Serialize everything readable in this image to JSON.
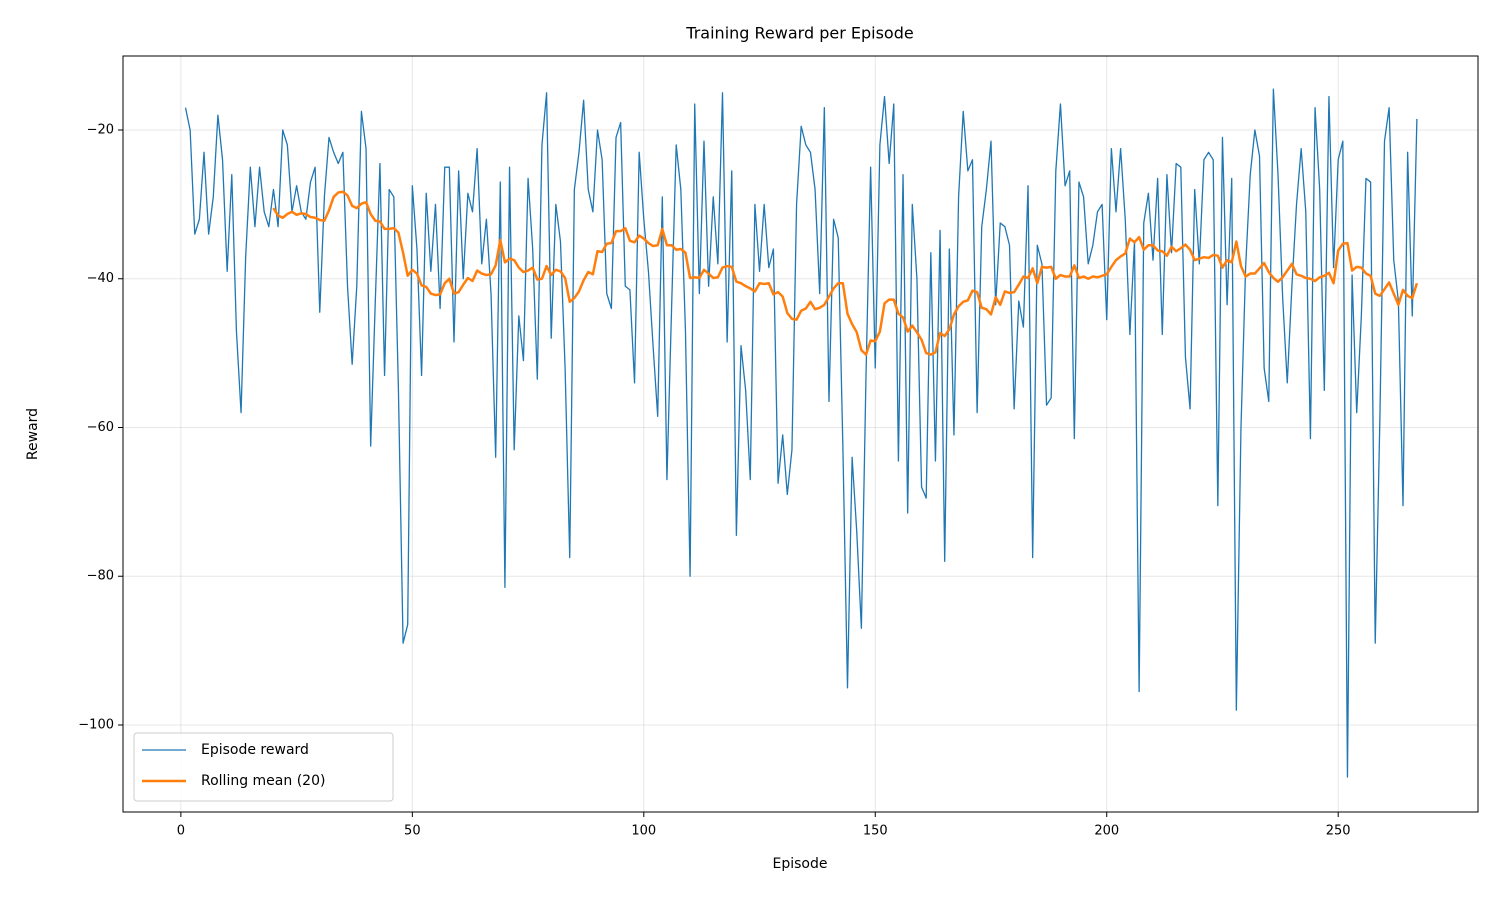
{
  "chart_data": {
    "type": "line",
    "title": "Training Reward per Episode",
    "x_label": "Episode",
    "y_label": "Reward",
    "x": [
      1,
      2,
      3,
      4,
      5,
      6,
      7,
      8,
      9,
      10,
      11,
      12,
      13,
      14,
      15,
      16,
      17,
      18,
      19,
      20,
      21,
      22,
      23,
      24,
      25,
      26,
      27,
      28,
      29,
      30,
      31,
      32,
      33,
      34,
      35,
      36,
      37,
      38,
      39,
      40,
      41,
      42,
      43,
      44,
      45,
      46,
      47,
      48,
      49,
      50,
      51,
      52,
      53,
      54,
      55,
      56,
      57,
      58,
      59,
      60,
      61,
      62,
      63,
      64,
      65,
      66,
      67,
      68,
      69,
      70,
      71,
      72,
      73,
      74,
      75,
      76,
      77,
      78,
      79,
      80,
      81,
      82,
      83,
      84,
      85,
      86,
      87,
      88,
      89,
      90,
      91,
      92,
      93,
      94,
      95,
      96,
      97,
      98,
      99,
      100,
      101,
      102,
      103,
      104,
      105,
      106,
      107,
      108,
      109,
      110,
      111,
      112,
      113,
      114,
      115,
      116,
      117,
      118,
      119,
      120,
      121,
      122,
      123,
      124,
      125,
      126,
      127,
      128,
      129,
      130,
      131,
      132,
      133,
      134,
      135,
      136,
      137,
      138,
      139,
      140,
      141,
      142,
      143,
      144,
      145,
      146,
      147,
      148,
      149,
      150,
      151,
      152,
      153,
      154,
      155,
      156,
      157,
      158,
      159,
      160,
      161,
      162,
      163,
      164,
      165,
      166,
      167,
      168,
      169,
      170,
      171,
      172,
      173,
      174,
      175,
      176,
      177,
      178,
      179,
      180,
      181,
      182,
      183,
      184,
      185,
      186,
      187,
      188,
      189,
      190,
      191,
      192,
      193,
      194,
      195,
      196,
      197,
      198,
      199,
      200,
      201,
      202,
      203,
      204,
      205,
      206,
      207,
      208,
      209,
      210,
      211,
      212,
      213,
      214,
      215,
      216,
      217,
      218,
      219,
      220,
      221,
      222,
      223,
      224,
      225,
      226,
      227,
      228,
      229,
      230,
      231,
      232,
      233,
      234,
      235,
      236,
      237,
      238,
      239,
      240,
      241,
      242,
      243,
      244,
      245,
      246,
      247,
      248,
      249,
      250,
      251,
      252,
      253,
      254,
      255,
      256,
      257,
      258,
      259,
      260,
      261,
      262,
      263,
      264,
      265,
      266,
      267
    ],
    "series": [
      {
        "name": "Episode reward",
        "color": "#1f77b4",
        "width": 1.3,
        "values": [
          -17,
          -20,
          -34,
          -32,
          -23,
          -34,
          -29,
          -18,
          -24,
          -39,
          -26,
          -47,
          -58,
          -37,
          -25,
          -33,
          -25,
          -31,
          -33,
          -28,
          -33,
          -20,
          -22,
          -31,
          -27.5,
          -31,
          -32,
          -27,
          -25,
          -44.5,
          -29,
          -21,
          -23,
          -24.5,
          -23,
          -41,
          -51.5,
          -41,
          -17.5,
          -22.5,
          -62.5,
          -43,
          -24.5,
          -53,
          -28,
          -29,
          -55,
          -89,
          -86.5,
          -27.5,
          -36,
          -53,
          -28.5,
          -39,
          -30,
          -44,
          -25,
          -25,
          -48.5,
          -25.5,
          -40,
          -28.5,
          -31,
          -22.5,
          -38,
          -32,
          -42,
          -64,
          -27,
          -81.5,
          -25,
          -63,
          -45,
          -51,
          -26.5,
          -36,
          -53.5,
          -22,
          -15,
          -48,
          -30,
          -35,
          -52,
          -77.5,
          -28,
          -23,
          -16,
          -28,
          -31,
          -20,
          -24,
          -42,
          -44,
          -21,
          -19,
          -41,
          -41.5,
          -54,
          -23,
          -32,
          -39,
          -49,
          -58.5,
          -29,
          -67,
          -44,
          -22,
          -28,
          -47,
          -80,
          -16.5,
          -42,
          -21.5,
          -41,
          -29,
          -38,
          -15,
          -48.5,
          -25.5,
          -74.5,
          -49,
          -55,
          -67,
          -30,
          -39,
          -30,
          -38.5,
          -36,
          -67.5,
          -61,
          -69,
          -63,
          -30,
          -19.5,
          -22,
          -23,
          -28,
          -42,
          -17,
          -56.5,
          -32,
          -34.5,
          -62.5,
          -95,
          -64,
          -74,
          -87,
          -53,
          -25,
          -52,
          -22,
          -15.5,
          -24.5,
          -16.5,
          -64.5,
          -26,
          -71.5,
          -30,
          -40,
          -68,
          -69.5,
          -36.5,
          -64.5,
          -33.5,
          -78,
          -36,
          -61,
          -29,
          -17.5,
          -25.5,
          -24,
          -58,
          -33,
          -28,
          -21.5,
          -43.5,
          -32.5,
          -33,
          -35.5,
          -57.5,
          -43,
          -46.5,
          -27.5,
          -77.5,
          -35.5,
          -38,
          -57,
          -56,
          -25.5,
          -16.5,
          -27.5,
          -25.5,
          -61.5,
          -27,
          -29,
          -38,
          -35.5,
          -31,
          -30,
          -45.5,
          -22.5,
          -31,
          -22.5,
          -32,
          -47.5,
          -35,
          -95.5,
          -32.5,
          -28.5,
          -37.5,
          -26.5,
          -47.5,
          -26,
          -36.5,
          -24.5,
          -25,
          -50.5,
          -57.5,
          -28,
          -38,
          -24,
          -23,
          -24,
          -70.5,
          -21,
          -43.5,
          -26.5,
          -98,
          -60,
          -38.5,
          -26,
          -20,
          -23.5,
          -52,
          -56.5,
          -14.5,
          -26,
          -42.5,
          -54,
          -41,
          -30,
          -22.5,
          -31,
          -61.5,
          -17,
          -28,
          -55,
          -15.5,
          -38.5,
          -24,
          -21.5,
          -107,
          -39.5,
          -58,
          -45,
          -26.5,
          -27,
          -89,
          -59,
          -21.5,
          -17,
          -37.5,
          -43,
          -70.5,
          -23,
          -45,
          -18.5
        ]
      },
      {
        "name": "Rolling mean (20)",
        "color": "#ff7f0e",
        "width": 2.5,
        "values": [
          null,
          null,
          null,
          null,
          null,
          null,
          null,
          null,
          null,
          null,
          null,
          null,
          null,
          null,
          null,
          null,
          null,
          null,
          null,
          -30.5,
          -31.5,
          -31.8,
          -31.3,
          -31,
          -31.4,
          -31.2,
          -31.3,
          -31.7,
          -31.8,
          -32.1,
          -32.2,
          -30.8,
          -29,
          -28.4,
          -28.3,
          -28.8,
          -30.2,
          -30.5,
          -29.9,
          -29.7,
          -31.3,
          -32.2,
          -32.3,
          -33.3,
          -33.3,
          -33.2,
          -33.8,
          -36.5,
          -39.6,
          -38.8,
          -39.3,
          -40.9,
          -41.1,
          -42,
          -42.2,
          -42.1,
          -40.6,
          -40,
          -42,
          -41.8,
          -40.8,
          -39.9,
          -40.3,
          -38.9,
          -39.3,
          -39.5,
          -39.4,
          -38.2,
          -34.8,
          -37.8,
          -37.3,
          -37.5,
          -38.5,
          -39.1,
          -38.9,
          -38.5,
          -40.1,
          -40,
          -38.3,
          -39.5,
          -38.8,
          -39,
          -39.9,
          -43.1,
          -42.6,
          -41.7,
          -40.2,
          -39.1,
          -39.4,
          -36.3,
          -36.4,
          -35.3,
          -35.2,
          -33.6,
          -33.6,
          -33.2,
          -34.9,
          -35.1,
          -34.2,
          -34.6,
          -35.2,
          -35.6,
          -35.5,
          -33.3,
          -35.5,
          -35.5,
          -36.1,
          -36,
          -36.5,
          -39.9,
          -39.8,
          -39.9,
          -38.8,
          -39.3,
          -39.9,
          -39.8,
          -38.5,
          -38.3,
          -38.4,
          -40.4,
          -40.6,
          -41,
          -41.3,
          -41.7,
          -40.6,
          -40.7,
          -40.6,
          -42.1,
          -41.8,
          -42.4,
          -44.6,
          -45.4,
          -45.5,
          -44.3,
          -44,
          -43.1,
          -44.1,
          -43.9,
          -43.5,
          -42.4,
          -41.3,
          -40.6,
          -40.6,
          -44.7,
          -46.1,
          -47.2,
          -49.6,
          -50.2,
          -48.3,
          -48.4,
          -47.1,
          -43.3,
          -42.8,
          -42.8,
          -44.7,
          -45.2,
          -47.1,
          -46.3,
          -47.2,
          -48.2,
          -50,
          -50.2,
          -49.9,
          -47.3,
          -47.7,
          -46.8,
          -44.8,
          -43.7,
          -43.1,
          -42.9,
          -41.6,
          -41.8,
          -43.9,
          -44.1,
          -44.8,
          -42.5,
          -43.5,
          -41.7,
          -41.9,
          -41.8,
          -40.8,
          -39.7,
          -39.9,
          -38.6,
          -40.6,
          -38.4,
          -38.5,
          -38.4,
          -40,
          -39.5,
          -39.7,
          -39.7,
          -38.2,
          -39.9,
          -39.7,
          -40,
          -39.7,
          -39.8,
          -39.6,
          -39.4,
          -38.4,
          -37.5,
          -37,
          -36.6,
          -34.6,
          -35.1,
          -34.4,
          -36.1,
          -35.5,
          -35.5,
          -36.2,
          -36.3,
          -36.9,
          -35.7,
          -36.3,
          -35.9,
          -35.4,
          -36.1,
          -37.5,
          -37.3,
          -37.1,
          -37.2,
          -36.8,
          -36.9,
          -38.5,
          -37.5,
          -37.8,
          -35,
          -38.3,
          -39.7,
          -39.3,
          -39.3,
          -38.6,
          -37.9,
          -39.1,
          -39.9,
          -40.4,
          -39.8,
          -38.9,
          -38,
          -39.4,
          -39.6,
          -39.9,
          -40,
          -40.3,
          -39.8,
          -39.6,
          -39.2,
          -40.6,
          -36.2,
          -35.3,
          -35.2,
          -38.9,
          -38.4,
          -38.5,
          -39.3,
          -39.6,
          -42,
          -42.3,
          -41.4,
          -40.5,
          -42,
          -43.5,
          -41.5,
          -42.3,
          -42.6,
          -40.6
        ]
      }
    ],
    "xlim": [
      -12.5,
      280.2
    ],
    "ylim": [
      -111.7,
      -10.05
    ],
    "xticks": [
      0,
      50,
      100,
      150,
      200,
      250
    ],
    "yticks": [
      {
        "value": -100,
        "label": "−100"
      },
      {
        "value": -80,
        "label": "−80"
      },
      {
        "value": -60,
        "label": "−60"
      },
      {
        "value": -40,
        "label": "−40"
      },
      {
        "value": -20,
        "label": "−20"
      }
    ],
    "grid": true,
    "legend": "lower left"
  }
}
